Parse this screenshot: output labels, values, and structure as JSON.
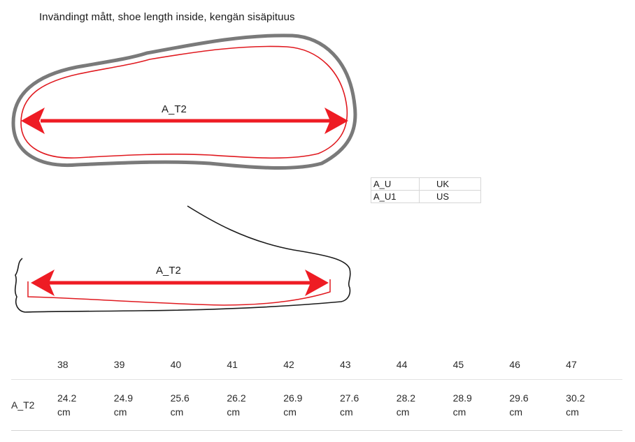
{
  "title": "Invändingt mått, shoe length inside, kengän sisäpituus",
  "diagram": {
    "top_label": "A_T2",
    "side_label": "A_T2",
    "colors": {
      "outline": "#7a7a7a",
      "inner": "#e0191f",
      "arrow": "#ee1c24",
      "side_outline": "#1a1a1a"
    }
  },
  "legend": {
    "rows": [
      {
        "code": "A_U",
        "system": "UK"
      },
      {
        "code": "A_U1",
        "system": "US"
      }
    ]
  },
  "size_table": {
    "row_label": "A_T2",
    "sizes": [
      "38",
      "39",
      "40",
      "41",
      "42",
      "43",
      "44",
      "45",
      "46",
      "47"
    ],
    "values": [
      "24.2",
      "24.9",
      "25.6",
      "26.2",
      "26.9",
      "27.6",
      "28.2",
      "28.9",
      "29.6",
      "30.2"
    ],
    "unit": "cm"
  }
}
